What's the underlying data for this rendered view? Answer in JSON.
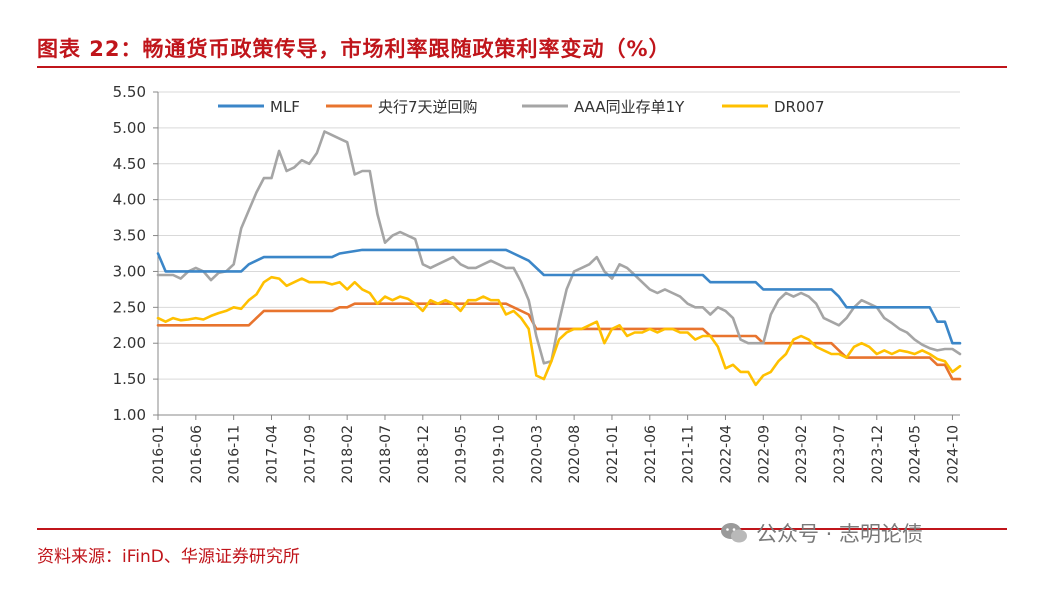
{
  "header": {
    "title": "图表 22：畅通货币政策传导，市场利率跟随政策利率变动（%）"
  },
  "footer": {
    "source": "资料来源：iFinD、华源证券研究所",
    "watermark": "公众号 · 志明论债",
    "watermark_icon": "wechat-icon"
  },
  "colors": {
    "accent": "#c0151b",
    "MLF": "#3b86c8",
    "央行7天逆回购": "#e8742e",
    "AAA同业存单1Y": "#a5a5a5",
    "DR007": "#ffc000"
  },
  "chart_data": {
    "type": "line",
    "title": "",
    "xlabel": "",
    "ylabel": "",
    "ylim": [
      1.0,
      5.5
    ],
    "yticks": [
      "5.50",
      "5.00",
      "4.50",
      "4.00",
      "3.50",
      "3.00",
      "2.50",
      "2.00",
      "1.50",
      "1.00"
    ],
    "xticks": [
      "2016-01",
      "2016-06",
      "2016-11",
      "2017-04",
      "2017-09",
      "2018-02",
      "2018-07",
      "2018-12",
      "2019-05",
      "2019-10",
      "2020-03",
      "2020-08",
      "2021-01",
      "2021-06",
      "2021-11",
      "2022-04",
      "2022-09",
      "2023-02",
      "2023-07",
      "2023-12",
      "2024-05",
      "2024-10"
    ],
    "grid": true,
    "legend": "top",
    "x_start": "2016-01",
    "x_end": "2024-11",
    "series": [
      {
        "name": "MLF",
        "points": [
          [
            "2016-01",
            3.25
          ],
          [
            "2016-02",
            3.0
          ],
          [
            "2016-12",
            3.0
          ],
          [
            "2017-01",
            3.1
          ],
          [
            "2017-03",
            3.2
          ],
          [
            "2017-12",
            3.2
          ],
          [
            "2018-01",
            3.25
          ],
          [
            "2018-04",
            3.3
          ],
          [
            "2019-11",
            3.3
          ],
          [
            "2019-12",
            3.25
          ],
          [
            "2020-02",
            3.15
          ],
          [
            "2020-04",
            2.95
          ],
          [
            "2022-01",
            2.95
          ],
          [
            "2022-02",
            2.85
          ],
          [
            "2022-08",
            2.85
          ],
          [
            "2022-09",
            2.75
          ],
          [
            "2023-06",
            2.75
          ],
          [
            "2023-07",
            2.65
          ],
          [
            "2023-08",
            2.5
          ],
          [
            "2024-07",
            2.5
          ],
          [
            "2024-08",
            2.3
          ],
          [
            "2024-09",
            2.3
          ],
          [
            "2024-10",
            2.0
          ],
          [
            "2024-11",
            2.0
          ]
        ]
      },
      {
        "name": "央行7天逆回购",
        "points": [
          [
            "2016-01",
            2.25
          ],
          [
            "2017-01",
            2.25
          ],
          [
            "2017-03",
            2.45
          ],
          [
            "2017-12",
            2.45
          ],
          [
            "2018-01",
            2.5
          ],
          [
            "2018-02",
            2.5
          ],
          [
            "2018-03",
            2.55
          ],
          [
            "2019-11",
            2.55
          ],
          [
            "2019-12",
            2.5
          ],
          [
            "2020-02",
            2.4
          ],
          [
            "2020-03",
            2.2
          ],
          [
            "2022-01",
            2.2
          ],
          [
            "2022-02",
            2.1
          ],
          [
            "2022-08",
            2.1
          ],
          [
            "2022-09",
            2.0
          ],
          [
            "2023-06",
            2.0
          ],
          [
            "2023-07",
            1.9
          ],
          [
            "2023-08",
            1.8
          ],
          [
            "2024-07",
            1.8
          ],
          [
            "2024-08",
            1.7
          ],
          [
            "2024-09",
            1.7
          ],
          [
            "2024-10",
            1.5
          ],
          [
            "2024-11",
            1.5
          ]
        ]
      },
      {
        "name": "AAA同业存单1Y",
        "points": [
          [
            "2016-01",
            2.95
          ],
          [
            "2016-03",
            2.95
          ],
          [
            "2016-04",
            2.9
          ],
          [
            "2016-05",
            3.0
          ],
          [
            "2016-06",
            3.05
          ],
          [
            "2016-07",
            3.0
          ],
          [
            "2016-08",
            2.88
          ],
          [
            "2016-09",
            2.98
          ],
          [
            "2016-10",
            3.0
          ],
          [
            "2016-11",
            3.1
          ],
          [
            "2016-12",
            3.6
          ],
          [
            "2017-01",
            3.85
          ],
          [
            "2017-02",
            4.1
          ],
          [
            "2017-03",
            4.3
          ],
          [
            "2017-04",
            4.3
          ],
          [
            "2017-05",
            4.68
          ],
          [
            "2017-06",
            4.4
          ],
          [
            "2017-07",
            4.45
          ],
          [
            "2017-08",
            4.55
          ],
          [
            "2017-09",
            4.5
          ],
          [
            "2017-10",
            4.65
          ],
          [
            "2017-11",
            4.95
          ],
          [
            "2017-12",
            4.9
          ],
          [
            "2018-01",
            4.85
          ],
          [
            "2018-02",
            4.8
          ],
          [
            "2018-03",
            4.35
          ],
          [
            "2018-04",
            4.4
          ],
          [
            "2018-05",
            4.4
          ],
          [
            "2018-06",
            3.8
          ],
          [
            "2018-07",
            3.4
          ],
          [
            "2018-08",
            3.5
          ],
          [
            "2018-09",
            3.55
          ],
          [
            "2018-10",
            3.5
          ],
          [
            "2018-11",
            3.45
          ],
          [
            "2018-12",
            3.1
          ],
          [
            "2019-01",
            3.05
          ],
          [
            "2019-02",
            3.1
          ],
          [
            "2019-03",
            3.15
          ],
          [
            "2019-04",
            3.2
          ],
          [
            "2019-05",
            3.1
          ],
          [
            "2019-06",
            3.05
          ],
          [
            "2019-07",
            3.05
          ],
          [
            "2019-08",
            3.1
          ],
          [
            "2019-09",
            3.15
          ],
          [
            "2019-10",
            3.1
          ],
          [
            "2019-11",
            3.05
          ],
          [
            "2019-12",
            3.05
          ],
          [
            "2020-01",
            2.85
          ],
          [
            "2020-02",
            2.6
          ],
          [
            "2020-03",
            2.1
          ],
          [
            "2020-04",
            1.72
          ],
          [
            "2020-05",
            1.75
          ],
          [
            "2020-06",
            2.3
          ],
          [
            "2020-07",
            2.75
          ],
          [
            "2020-08",
            3.0
          ],
          [
            "2020-09",
            3.05
          ],
          [
            "2020-10",
            3.1
          ],
          [
            "2020-11",
            3.2
          ],
          [
            "2020-12",
            3.0
          ],
          [
            "2021-01",
            2.9
          ],
          [
            "2021-02",
            3.1
          ],
          [
            "2021-03",
            3.05
          ],
          [
            "2021-04",
            2.95
          ],
          [
            "2021-05",
            2.85
          ],
          [
            "2021-06",
            2.75
          ],
          [
            "2021-07",
            2.7
          ],
          [
            "2021-08",
            2.75
          ],
          [
            "2021-09",
            2.7
          ],
          [
            "2021-10",
            2.65
          ],
          [
            "2021-11",
            2.55
          ],
          [
            "2021-12",
            2.5
          ],
          [
            "2022-01",
            2.5
          ],
          [
            "2022-02",
            2.4
          ],
          [
            "2022-03",
            2.5
          ],
          [
            "2022-04",
            2.45
          ],
          [
            "2022-05",
            2.35
          ],
          [
            "2022-06",
            2.05
          ],
          [
            "2022-07",
            2.0
          ],
          [
            "2022-08",
            2.0
          ],
          [
            "2022-09",
            2.0
          ],
          [
            "2022-10",
            2.4
          ],
          [
            "2022-11",
            2.6
          ],
          [
            "2022-12",
            2.7
          ],
          [
            "2023-01",
            2.65
          ],
          [
            "2023-02",
            2.7
          ],
          [
            "2023-03",
            2.65
          ],
          [
            "2023-04",
            2.55
          ],
          [
            "2023-05",
            2.35
          ],
          [
            "2023-06",
            2.3
          ],
          [
            "2023-07",
            2.25
          ],
          [
            "2023-08",
            2.35
          ],
          [
            "2023-09",
            2.5
          ],
          [
            "2023-10",
            2.6
          ],
          [
            "2023-11",
            2.55
          ],
          [
            "2023-12",
            2.5
          ],
          [
            "2024-01",
            2.35
          ],
          [
            "2024-02",
            2.28
          ],
          [
            "2024-03",
            2.2
          ],
          [
            "2024-04",
            2.15
          ],
          [
            "2024-05",
            2.05
          ],
          [
            "2024-06",
            1.98
          ],
          [
            "2024-07",
            1.93
          ],
          [
            "2024-08",
            1.9
          ],
          [
            "2024-09",
            1.92
          ],
          [
            "2024-10",
            1.92
          ],
          [
            "2024-11",
            1.85
          ]
        ]
      },
      {
        "name": "DR007",
        "points": [
          [
            "2016-01",
            2.35
          ],
          [
            "2016-02",
            2.3
          ],
          [
            "2016-03",
            2.35
          ],
          [
            "2016-04",
            2.32
          ],
          [
            "2016-05",
            2.33
          ],
          [
            "2016-06",
            2.35
          ],
          [
            "2016-07",
            2.33
          ],
          [
            "2016-08",
            2.38
          ],
          [
            "2016-09",
            2.42
          ],
          [
            "2016-10",
            2.45
          ],
          [
            "2016-11",
            2.5
          ],
          [
            "2016-12",
            2.48
          ],
          [
            "2017-01",
            2.6
          ],
          [
            "2017-02",
            2.68
          ],
          [
            "2017-03",
            2.85
          ],
          [
            "2017-04",
            2.92
          ],
          [
            "2017-05",
            2.9
          ],
          [
            "2017-06",
            2.8
          ],
          [
            "2017-07",
            2.85
          ],
          [
            "2017-08",
            2.9
          ],
          [
            "2017-09",
            2.85
          ],
          [
            "2017-10",
            2.85
          ],
          [
            "2017-11",
            2.85
          ],
          [
            "2017-12",
            2.82
          ],
          [
            "2018-01",
            2.85
          ],
          [
            "2018-02",
            2.75
          ],
          [
            "2018-03",
            2.85
          ],
          [
            "2018-04",
            2.75
          ],
          [
            "2018-05",
            2.7
          ],
          [
            "2018-06",
            2.55
          ],
          [
            "2018-07",
            2.65
          ],
          [
            "2018-08",
            2.6
          ],
          [
            "2018-09",
            2.65
          ],
          [
            "2018-10",
            2.62
          ],
          [
            "2018-11",
            2.55
          ],
          [
            "2018-12",
            2.45
          ],
          [
            "2019-01",
            2.6
          ],
          [
            "2019-02",
            2.55
          ],
          [
            "2019-03",
            2.6
          ],
          [
            "2019-04",
            2.55
          ],
          [
            "2019-05",
            2.45
          ],
          [
            "2019-06",
            2.6
          ],
          [
            "2019-07",
            2.6
          ],
          [
            "2019-08",
            2.65
          ],
          [
            "2019-09",
            2.6
          ],
          [
            "2019-10",
            2.6
          ],
          [
            "2019-11",
            2.4
          ],
          [
            "2019-12",
            2.45
          ],
          [
            "2020-01",
            2.35
          ],
          [
            "2020-02",
            2.2
          ],
          [
            "2020-03",
            1.55
          ],
          [
            "2020-04",
            1.5
          ],
          [
            "2020-05",
            1.75
          ],
          [
            "2020-06",
            2.05
          ],
          [
            "2020-07",
            2.15
          ],
          [
            "2020-08",
            2.2
          ],
          [
            "2020-09",
            2.2
          ],
          [
            "2020-10",
            2.25
          ],
          [
            "2020-11",
            2.3
          ],
          [
            "2020-12",
            2.0
          ],
          [
            "2021-01",
            2.2
          ],
          [
            "2021-02",
            2.25
          ],
          [
            "2021-03",
            2.1
          ],
          [
            "2021-04",
            2.15
          ],
          [
            "2021-05",
            2.15
          ],
          [
            "2021-06",
            2.2
          ],
          [
            "2021-07",
            2.15
          ],
          [
            "2021-08",
            2.2
          ],
          [
            "2021-09",
            2.2
          ],
          [
            "2021-10",
            2.15
          ],
          [
            "2021-11",
            2.15
          ],
          [
            "2021-12",
            2.05
          ],
          [
            "2022-01",
            2.1
          ],
          [
            "2022-02",
            2.1
          ],
          [
            "2022-03",
            1.95
          ],
          [
            "2022-04",
            1.65
          ],
          [
            "2022-05",
            1.7
          ],
          [
            "2022-06",
            1.6
          ],
          [
            "2022-07",
            1.6
          ],
          [
            "2022-08",
            1.42
          ],
          [
            "2022-09",
            1.55
          ],
          [
            "2022-10",
            1.6
          ],
          [
            "2022-11",
            1.75
          ],
          [
            "2022-12",
            1.85
          ],
          [
            "2023-01",
            2.05
          ],
          [
            "2023-02",
            2.1
          ],
          [
            "2023-03",
            2.05
          ],
          [
            "2023-04",
            1.95
          ],
          [
            "2023-05",
            1.9
          ],
          [
            "2023-06",
            1.85
          ],
          [
            "2023-07",
            1.85
          ],
          [
            "2023-08",
            1.8
          ],
          [
            "2023-09",
            1.95
          ],
          [
            "2023-10",
            2.0
          ],
          [
            "2023-11",
            1.95
          ],
          [
            "2023-12",
            1.85
          ],
          [
            "2024-01",
            1.9
          ],
          [
            "2024-02",
            1.85
          ],
          [
            "2024-03",
            1.9
          ],
          [
            "2024-04",
            1.88
          ],
          [
            "2024-05",
            1.85
          ],
          [
            "2024-06",
            1.9
          ],
          [
            "2024-07",
            1.85
          ],
          [
            "2024-08",
            1.78
          ],
          [
            "2024-09",
            1.75
          ],
          [
            "2024-10",
            1.6
          ],
          [
            "2024-11",
            1.68
          ]
        ]
      }
    ]
  }
}
